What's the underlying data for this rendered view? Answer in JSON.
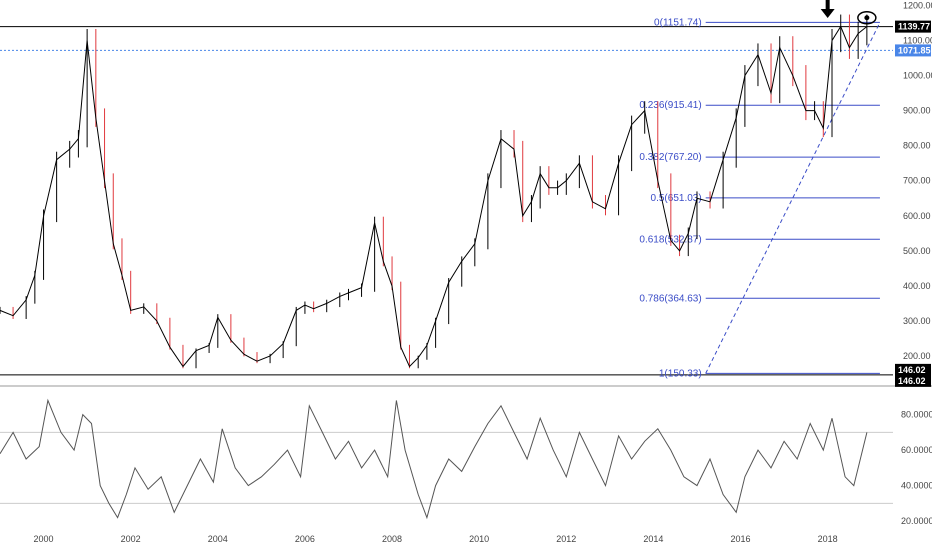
{
  "chart_data": [
    {
      "type": "line",
      "panel": "price",
      "title": "",
      "xlabel": "",
      "ylabel": "",
      "x_ticks": [
        "2000",
        "2002",
        "2004",
        "2006",
        "2008",
        "2010",
        "2012",
        "2014",
        "2016",
        "2018"
      ],
      "y_ticks": [
        "1200.00",
        "1100.00",
        "1000.00",
        "900.00",
        "800.00",
        "700.00",
        "600.00",
        "500.00",
        "400.00",
        "300.00",
        "200.00"
      ],
      "ylim": [
        120,
        1210
      ],
      "xlim": [
        1999.0,
        2019.5
      ],
      "grid": false,
      "series": [
        {
          "x": [
            1999.0,
            1999.3,
            1999.6,
            1999.8,
            2000.0,
            2000.3,
            2000.6,
            2000.8,
            2001.0,
            2001.2,
            2001.4,
            2001.6,
            2001.8,
            2002.0,
            2002.3,
            2002.6,
            2002.9,
            2003.2,
            2003.5,
            2003.8,
            2004.0,
            2004.3,
            2004.6,
            2004.9,
            2005.2,
            2005.5,
            2005.8,
            2006.0,
            2006.2,
            2006.5,
            2006.8,
            2007.0,
            2007.3,
            2007.6,
            2007.8,
            2008.0,
            2008.2,
            2008.4,
            2008.6,
            2008.8,
            2009.0,
            2009.3,
            2009.6,
            2009.9,
            2010.2,
            2010.5,
            2010.8,
            2011.0,
            2011.2,
            2011.4,
            2011.6,
            2011.8,
            2012.0,
            2012.3,
            2012.6,
            2012.9,
            2013.2,
            2013.5,
            2013.8,
            2014.1,
            2014.4,
            2014.6,
            2014.8,
            2015.0,
            2015.3,
            2015.6,
            2015.9,
            2016.1,
            2016.4,
            2016.7,
            2016.9,
            2017.2,
            2017.5,
            2017.7,
            2017.9,
            2018.1,
            2018.3,
            2018.5,
            2018.7,
            2018.9
          ],
          "values": [
            330,
            315,
            360,
            430,
            600,
            760,
            790,
            820,
            1100,
            880,
            700,
            520,
            430,
            330,
            340,
            300,
            225,
            170,
            215,
            230,
            310,
            245,
            205,
            185,
            200,
            235,
            330,
            345,
            335,
            350,
            370,
            380,
            395,
            580,
            470,
            400,
            225,
            170,
            195,
            230,
            300,
            410,
            470,
            520,
            700,
            820,
            790,
            600,
            640,
            720,
            680,
            680,
            700,
            750,
            640,
            620,
            750,
            860,
            900,
            700,
            530,
            500,
            550,
            650,
            640,
            760,
            880,
            1000,
            1060,
            950,
            1080,
            1000,
            900,
            900,
            850,
            1100,
            1140,
            1080,
            1120,
            1140
          ],
          "color": "#000000"
        }
      ],
      "price_tags": [
        {
          "label": "1139.77",
          "value": 1139.77,
          "color": "#000000"
        },
        {
          "label": "1071.85",
          "value": 1071.85,
          "color": "#4a86e8"
        },
        {
          "label": "146.02",
          "value": 146.02,
          "color": "#000000"
        },
        {
          "label": "146.02",
          "value": 146.02,
          "color": "#000000"
        }
      ],
      "horizontal_lines": [
        {
          "value": 1139.77,
          "color": "#000000",
          "style": "solid"
        },
        {
          "value": 1071.85,
          "color": "#4a86e8",
          "style": "dotted"
        },
        {
          "value": 146.02,
          "color": "#000000",
          "style": "solid"
        }
      ],
      "fibonacci_levels": [
        {
          "label": "0(1151.74)",
          "value": 1151.74
        },
        {
          "label": "0.236(915.41)",
          "value": 915.41
        },
        {
          "label": "0.382(767.20)",
          "value": 767.2
        },
        {
          "label": "0.5(651.03)",
          "value": 651.03
        },
        {
          "label": "0.618(532.87)",
          "value": 532.87
        },
        {
          "label": "0.786(364.63)",
          "value": 364.63
        },
        {
          "label": "1(150.33)",
          "value": 150.33
        }
      ],
      "fib_start_x": 2015.2,
      "fib_end_x": 2019.2,
      "trendline": {
        "x1": 2015.2,
        "y1": 150.33,
        "x2": 2019.2,
        "y2": 1151.74,
        "color": "#3a4cc7",
        "style": "dashed"
      },
      "annotations": [
        {
          "type": "down-arrow",
          "x": 2018.0,
          "value": 1190
        },
        {
          "type": "eye-icon",
          "x": 2018.9,
          "value": 1165
        }
      ]
    },
    {
      "type": "line",
      "panel": "oscillator",
      "title": "",
      "y_ticks": [
        "80.0000",
        "60.0000",
        "40.0000",
        "20.0000"
      ],
      "ylim": [
        15,
        95
      ],
      "xlim": [
        1999.0,
        2019.5
      ],
      "grid": false,
      "bands": [
        70,
        30
      ],
      "series": [
        {
          "x": [
            1999.0,
            1999.3,
            1999.6,
            1999.9,
            2000.1,
            2000.4,
            2000.7,
            2000.9,
            2001.1,
            2001.3,
            2001.5,
            2001.7,
            2001.9,
            2002.1,
            2002.4,
            2002.7,
            2003.0,
            2003.3,
            2003.6,
            2003.9,
            2004.1,
            2004.4,
            2004.7,
            2005.0,
            2005.3,
            2005.6,
            2005.9,
            2006.1,
            2006.4,
            2006.7,
            2007.0,
            2007.3,
            2007.6,
            2007.9,
            2008.1,
            2008.3,
            2008.6,
            2008.8,
            2009.0,
            2009.3,
            2009.6,
            2009.9,
            2010.2,
            2010.5,
            2010.8,
            2011.1,
            2011.4,
            2011.7,
            2012.0,
            2012.3,
            2012.6,
            2012.9,
            2013.2,
            2013.5,
            2013.8,
            2014.1,
            2014.4,
            2014.7,
            2015.0,
            2015.3,
            2015.6,
            2015.9,
            2016.1,
            2016.4,
            2016.7,
            2017.0,
            2017.3,
            2017.6,
            2017.9,
            2018.1,
            2018.4,
            2018.6,
            2018.9
          ],
          "values": [
            58,
            70,
            55,
            62,
            88,
            70,
            60,
            80,
            75,
            40,
            30,
            22,
            35,
            50,
            38,
            45,
            25,
            40,
            55,
            42,
            72,
            50,
            40,
            45,
            52,
            60,
            45,
            85,
            70,
            55,
            65,
            50,
            60,
            45,
            88,
            60,
            35,
            22,
            40,
            55,
            48,
            62,
            75,
            85,
            70,
            55,
            78,
            60,
            45,
            70,
            55,
            40,
            68,
            55,
            65,
            72,
            60,
            45,
            40,
            55,
            35,
            25,
            45,
            60,
            50,
            65,
            55,
            75,
            60,
            78,
            45,
            40,
            70
          ],
          "color": "#555555"
        }
      ]
    }
  ]
}
